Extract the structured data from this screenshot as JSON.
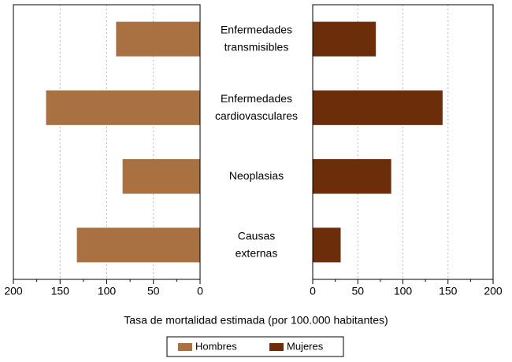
{
  "chart_data": {
    "type": "butterfly-bar",
    "categories": [
      "Enfermedades transmisibles",
      "Enfermedades cardiovasculares",
      "Neoplasias",
      "Causas externas"
    ],
    "series": [
      {
        "name": "Hombres",
        "color": "#a97142",
        "values": [
          90,
          165,
          83,
          132
        ]
      },
      {
        "name": "Mujeres",
        "color": "#6b2d0a",
        "values": [
          70,
          144,
          87,
          31
        ]
      }
    ],
    "xlim": [
      0,
      200
    ],
    "xticks": [
      0,
      50,
      100,
      150,
      200
    ],
    "xticks_minor": [
      25,
      75,
      125,
      175
    ],
    "grid": true,
    "x_label": "Tasa de mortalidad estimada (por 100.000 habitantes)"
  }
}
